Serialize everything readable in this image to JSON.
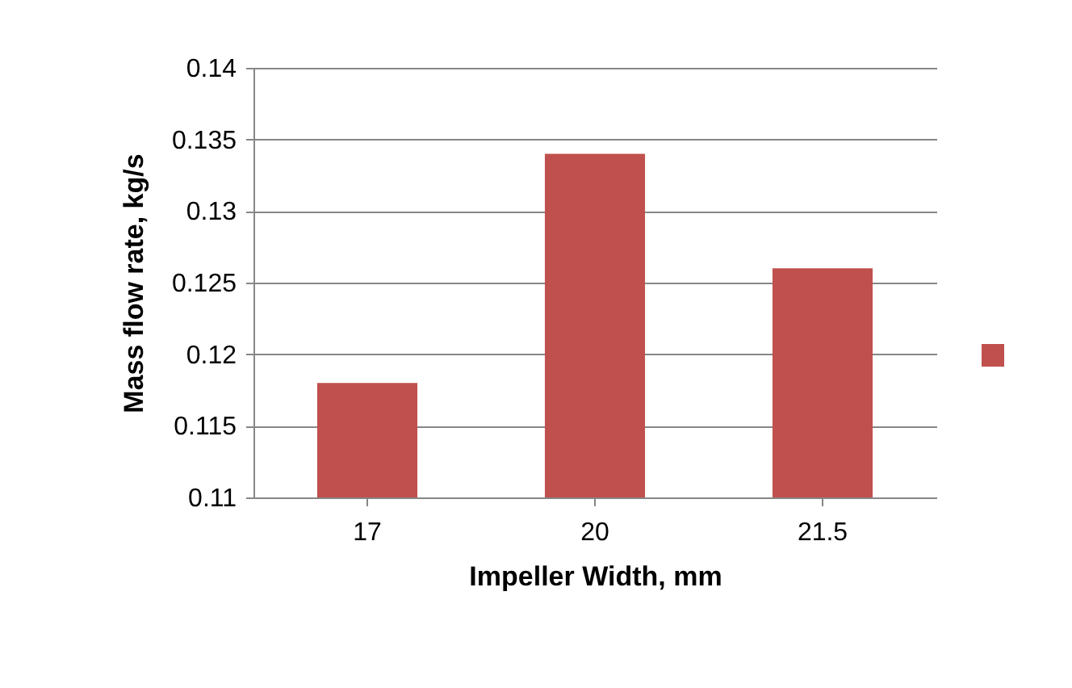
{
  "chart_data": {
    "type": "bar",
    "xlabel": "Impeller Width, mm",
    "ylabel": "Mass flow rate, kg/s",
    "categories": [
      "17",
      "20",
      "21.5"
    ],
    "series": [
      {
        "color": "#c0504d",
        "values": [
          0.118,
          0.134,
          0.126
        ]
      }
    ],
    "ylim": [
      0.11,
      0.14
    ],
    "yticks": [
      0.11,
      0.115,
      0.12,
      0.125,
      0.13,
      0.135,
      0.14
    ],
    "grid": "y"
  }
}
